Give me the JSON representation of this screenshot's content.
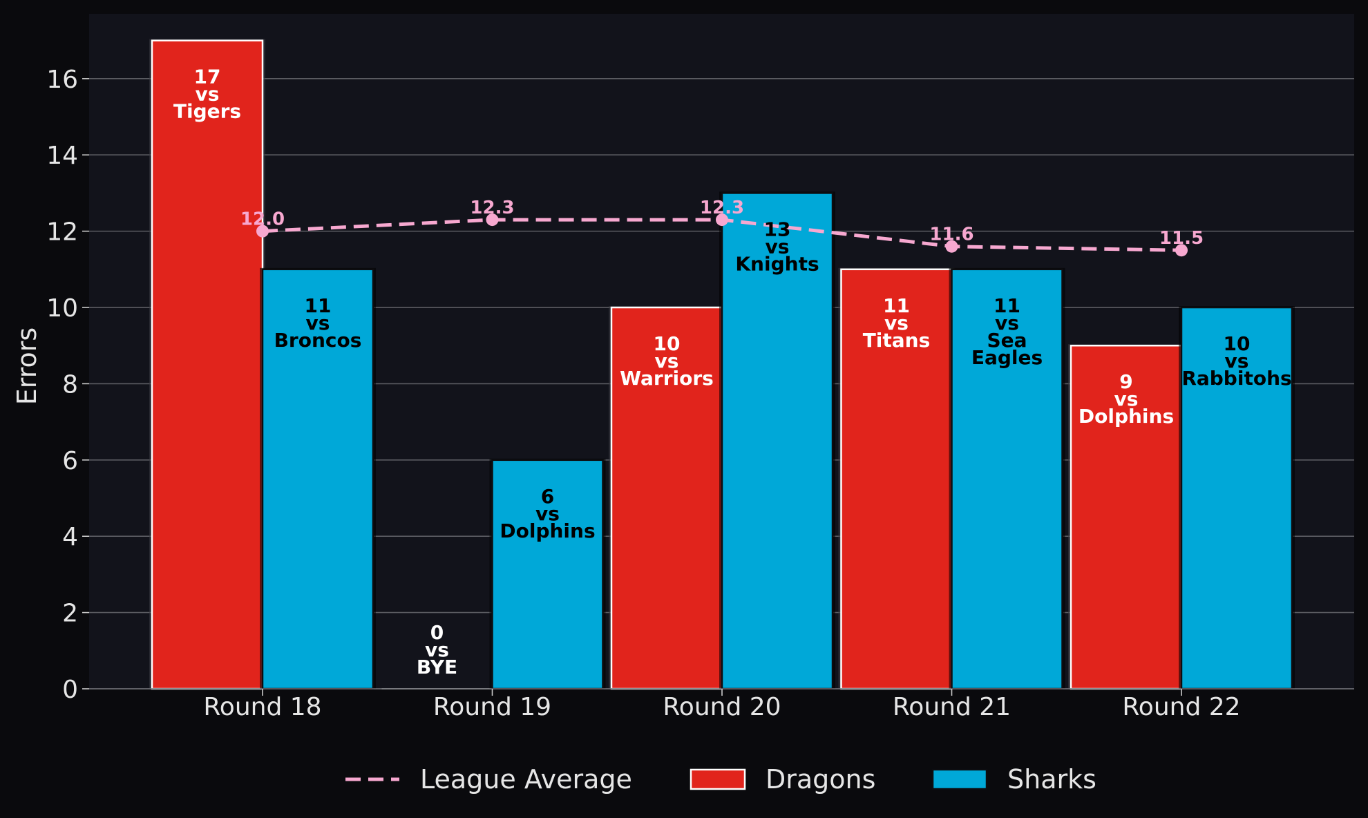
{
  "chart_data": {
    "type": "bar",
    "ylabel": "Errors",
    "ylim": [
      0,
      17.7
    ],
    "yticks": [
      0,
      2,
      4,
      6,
      8,
      10,
      12,
      14,
      16
    ],
    "grid": true,
    "legend_position": "bottom-center",
    "categories": [
      "Round 18",
      "Round 19",
      "Round 20",
      "Round 21",
      "Round 22"
    ],
    "series": [
      {
        "name": "Dragons",
        "color": "#e1241c",
        "values": [
          17,
          0,
          10,
          11,
          9
        ],
        "opponents": [
          "Tigers",
          "BYE",
          "Warriors",
          "Titans",
          "Dolphins"
        ]
      },
      {
        "name": "Sharks",
        "color": "#00a8d8",
        "values": [
          11,
          6,
          13,
          11,
          10
        ],
        "opponents": [
          "Broncos",
          "Dolphins",
          "Knights",
          "Sea Eagles",
          "Rabbitohs"
        ]
      }
    ],
    "line": {
      "name": "League Average",
      "color": "#f7a8d0",
      "style": "dashed",
      "values": [
        12.0,
        12.3,
        12.3,
        11.6,
        11.5
      ]
    },
    "vs_text": "vs"
  }
}
